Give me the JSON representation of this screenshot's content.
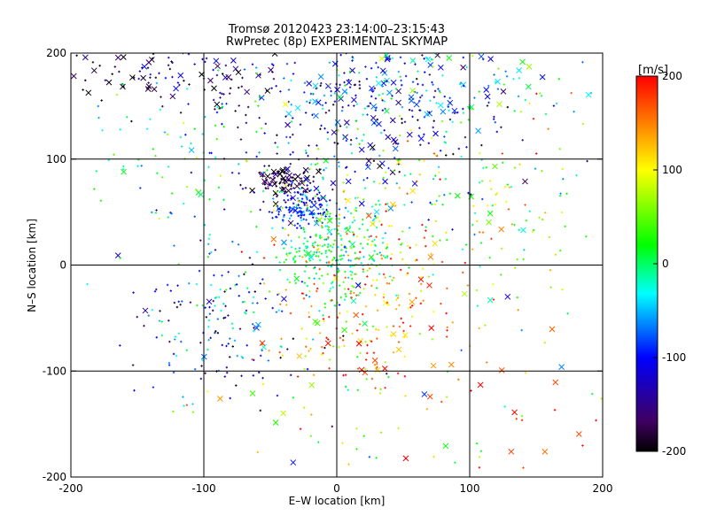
{
  "chart_data": {
    "type": "scatter",
    "title": "Tromsø 20120423 23:14:00–23:15:43",
    "subtitle": "RwPretec (8p) EXPERIMENTAL SKYMAP",
    "xlabel": "E–W location [km]",
    "ylabel": "N–S location [km]",
    "xlim": [
      -200,
      200
    ],
    "ylim": [
      -200,
      200
    ],
    "xticks": [
      -200,
      -100,
      0,
      100,
      200
    ],
    "yticks": [
      -200,
      -100,
      0,
      100,
      200
    ],
    "x_tick_labels": [
      "-200",
      "-100",
      "0",
      "100",
      "200"
    ],
    "y_tick_labels": [
      "-200",
      "-100",
      "0",
      "100",
      "200"
    ],
    "grid": true,
    "grid_lines": [
      -100,
      0,
      100
    ],
    "colorbar": {
      "label": "[m/s]",
      "range": [
        -200,
        200
      ],
      "ticks": [
        200,
        100,
        0,
        -100,
        -200
      ],
      "tick_labels": [
        "200",
        "100",
        "0",
        "-100",
        "-200"
      ],
      "colormap": [
        "#000000",
        "#400060",
        "#0000ff",
        "#00ffff",
        "#00ff00",
        "#ffff00",
        "#ff0000"
      ],
      "placement": "right"
    },
    "markers": {
      "small": "dot",
      "large": "cross"
    },
    "clusters": [
      {
        "x": -40,
        "y": 80,
        "sx": 12,
        "sy": 8,
        "vmean": -185,
        "vsd": 25,
        "n": 90,
        "cross": 0.25
      },
      {
        "x": -25,
        "y": 55,
        "sx": 12,
        "sy": 10,
        "vmean": -90,
        "vsd": 25,
        "n": 140,
        "cross": 0.12
      },
      {
        "x": 0,
        "y": 10,
        "sx": 22,
        "sy": 25,
        "vmean": 10,
        "vsd": 35,
        "n": 280,
        "cross": 0.05
      },
      {
        "x": 10,
        "y": 140,
        "sx": 55,
        "sy": 35,
        "vmean": -110,
        "vsd": 60,
        "n": 320,
        "cross": 0.22
      },
      {
        "x": -120,
        "y": 180,
        "sx": 40,
        "sy": 15,
        "vmean": -170,
        "vsd": 40,
        "n": 110,
        "cross": 0.3
      },
      {
        "x": 60,
        "y": 170,
        "sx": 60,
        "sy": 25,
        "vmean": -60,
        "vsd": 70,
        "n": 150,
        "cross": 0.3
      },
      {
        "x": 35,
        "y": -20,
        "sx": 35,
        "sy": 35,
        "vmean": 150,
        "vsd": 45,
        "n": 150,
        "cross": 0.05
      },
      {
        "x": -90,
        "y": -50,
        "sx": 35,
        "sy": 35,
        "vmean": -90,
        "vsd": 60,
        "n": 170,
        "cross": 0.06
      },
      {
        "x": 10,
        "y": -80,
        "sx": 25,
        "sy": 20,
        "vmean": 150,
        "vsd": 50,
        "n": 70,
        "cross": 0.2
      },
      {
        "x": 60,
        "y": 60,
        "sx": 70,
        "sy": 40,
        "vmean": 40,
        "vsd": 80,
        "n": 220,
        "cross": 0.06
      },
      {
        "x": -120,
        "y": 100,
        "sx": 40,
        "sy": 40,
        "vmean": -20,
        "vsd": 60,
        "n": 90,
        "cross": 0.05
      },
      {
        "x": 0,
        "y": -140,
        "sx": 90,
        "sy": 40,
        "vmean": 60,
        "vsd": 90,
        "n": 70,
        "cross": 0.18
      },
      {
        "x": 150,
        "y": -120,
        "sx": 40,
        "sy": 50,
        "vmean": 170,
        "vsd": 30,
        "n": 30,
        "cross": 0.35
      },
      {
        "x": 140,
        "y": 60,
        "sx": 40,
        "sy": 80,
        "vmean": 60,
        "vsd": 80,
        "n": 60,
        "cross": 0.15
      }
    ],
    "points_approximate": true
  }
}
